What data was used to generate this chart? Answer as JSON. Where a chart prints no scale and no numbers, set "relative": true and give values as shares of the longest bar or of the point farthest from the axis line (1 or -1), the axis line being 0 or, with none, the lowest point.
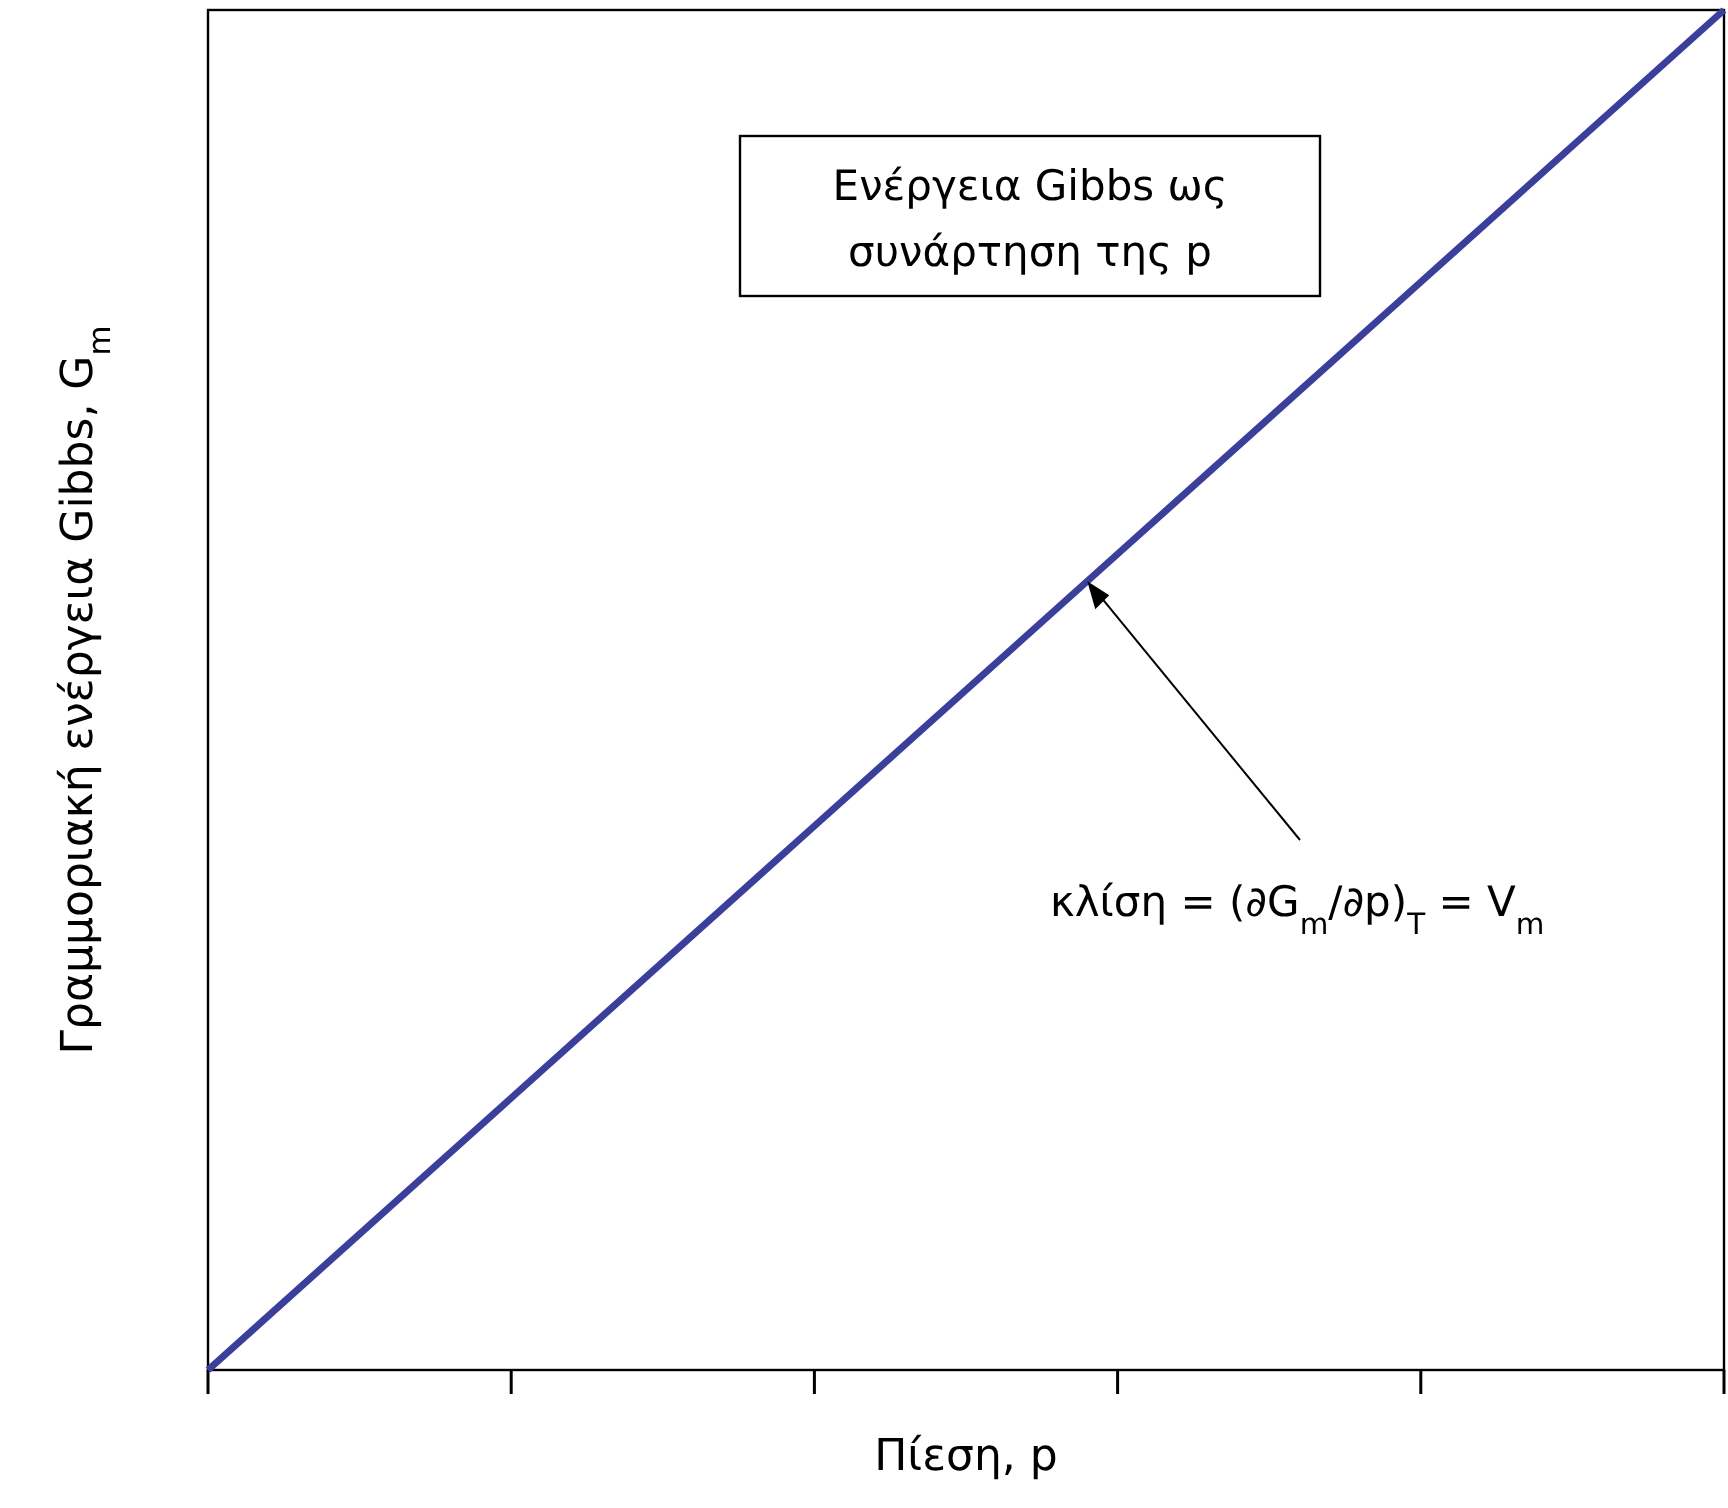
{
  "chart_data": {
    "type": "line",
    "relative": true,
    "xlabel": "Πίεση, p",
    "ylabel": "Γραμμοριακή ενέργεια Gibbs, G$_{m}$",
    "categories": [
      null,
      null,
      null,
      null,
      null,
      null
    ],
    "series": [
      {
        "color": "#3b3f9c",
        "values": [
          0,
          0.2,
          0.4,
          0.6,
          0.8,
          1
        ]
      }
    ],
    "annotations": [
      "Ενέργεια Gibbs ως συνάρτηση της p",
      "κλίση = (∂G$_{m}$/∂p)$_{T}$ = V$_{m}$"
    ],
    "line_style": "solid"
  }
}
